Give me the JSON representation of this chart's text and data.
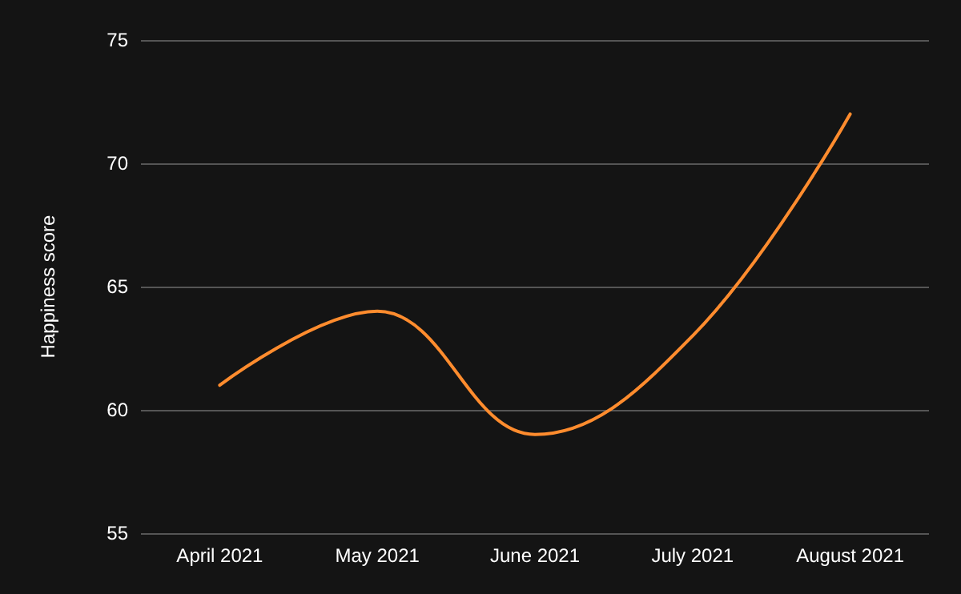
{
  "chart_data": {
    "type": "line",
    "ylabel": "Happiness score",
    "categories": [
      "April 2021",
      "May 2021",
      "June 2021",
      "July 2021",
      "August 2021"
    ],
    "series": [
      {
        "color": "#ff8c2e",
        "values": [
          61,
          64,
          59,
          63,
          72
        ]
      }
    ],
    "ylim": [
      55,
      75
    ],
    "yticks": [
      55,
      60,
      65,
      70,
      75
    ],
    "grid": "y",
    "marker": "none",
    "line_style": "solid"
  }
}
